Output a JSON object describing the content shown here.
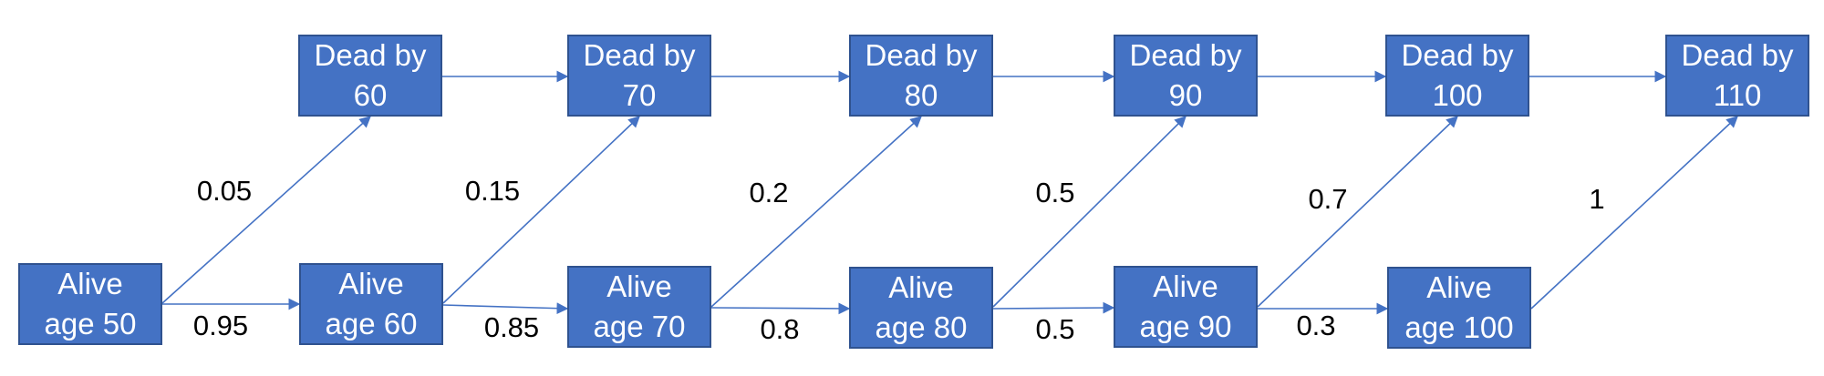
{
  "colors": {
    "box_fill": "#4472c4",
    "box_border": "#2f528f",
    "box_text": "#ffffff",
    "arrow": "#4472c4",
    "label": "#000000"
  },
  "alive": [
    {
      "line1": "Alive",
      "line2": "age 50"
    },
    {
      "line1": "Alive",
      "line2": "age 60"
    },
    {
      "line1": "Alive",
      "line2": "age 70"
    },
    {
      "line1": "Alive",
      "line2": "age 80"
    },
    {
      "line1": "Alive",
      "line2": "age 90"
    },
    {
      "line1": "Alive",
      "line2": "age 100"
    }
  ],
  "dead": [
    {
      "line1": "Dead by",
      "line2": "60"
    },
    {
      "line1": "Dead by",
      "line2": "70"
    },
    {
      "line1": "Dead by",
      "line2": "80"
    },
    {
      "line1": "Dead by",
      "line2": "90"
    },
    {
      "line1": "Dead by",
      "line2": "100"
    },
    {
      "line1": "Dead by",
      "line2": "110"
    }
  ],
  "death_probs": [
    "0.05",
    "0.15",
    "0.2",
    "0.5",
    "0.7",
    "1"
  ],
  "survive_probs": [
    "0.95",
    "0.85",
    "0.8",
    "0.5",
    "0.3"
  ]
}
